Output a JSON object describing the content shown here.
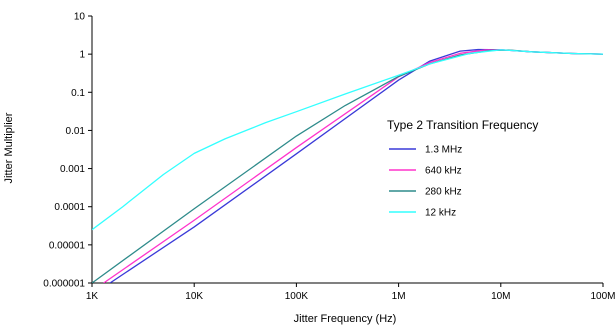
{
  "chart_data": {
    "type": "line",
    "title": "",
    "xlabel": "Jitter Frequency (Hz)",
    "ylabel": "Jitter Multiplier",
    "xscale": "log",
    "yscale": "log",
    "xlim": [
      1000,
      100000000
    ],
    "ylim": [
      1e-06,
      10
    ],
    "x_ticks": [
      {
        "value": 1000,
        "label": "1K"
      },
      {
        "value": 10000,
        "label": "10K"
      },
      {
        "value": 100000,
        "label": "100K"
      },
      {
        "value": 1000000,
        "label": "1M"
      },
      {
        "value": 10000000,
        "label": "10M"
      },
      {
        "value": 100000000,
        "label": "100M"
      }
    ],
    "y_ticks": [
      {
        "value": 10,
        "label": "10"
      },
      {
        "value": 1,
        "label": "1"
      },
      {
        "value": 0.1,
        "label": "0.1"
      },
      {
        "value": 0.01,
        "label": "0.01"
      },
      {
        "value": 0.001,
        "label": "0.001"
      },
      {
        "value": 0.0001,
        "label": "0.0001"
      },
      {
        "value": 1e-05,
        "label": "0.00001"
      },
      {
        "value": 1e-06,
        "label": "0.000001"
      }
    ],
    "grid": false,
    "legend": {
      "title": "Type 2 Transition Frequency",
      "position": "right-center"
    },
    "series": [
      {
        "name": "1.3 MHz",
        "color": "#3a3ad8",
        "points": [
          [
            1500,
            1e-06
          ],
          [
            10000,
            2.95e-05
          ],
          [
            100000,
            0.00244
          ],
          [
            1000000,
            0.209
          ],
          [
            2000000,
            0.65
          ],
          [
            4000000,
            1.2
          ],
          [
            6000000,
            1.32
          ],
          [
            10000000,
            1.3
          ],
          [
            20000000,
            1.15
          ],
          [
            50000000,
            1.04
          ],
          [
            100000000,
            1.0
          ]
        ]
      },
      {
        "name": "640 kHz",
        "color": "#ff33cc",
        "points": [
          [
            1300,
            1e-06
          ],
          [
            10000,
            4.42e-05
          ],
          [
            100000,
            0.00356
          ],
          [
            1000000,
            0.255
          ],
          [
            2000000,
            0.6
          ],
          [
            4000000,
            1.05
          ],
          [
            7000000,
            1.28
          ],
          [
            10000000,
            1.3
          ],
          [
            20000000,
            1.15
          ],
          [
            50000000,
            1.04
          ],
          [
            100000000,
            1.0
          ]
        ]
      },
      {
        "name": "280 kHz",
        "color": "#2e8b8b",
        "points": [
          [
            1000,
            1e-06
          ],
          [
            10000,
            8.83e-05
          ],
          [
            100000,
            0.00713
          ],
          [
            300000,
            0.045
          ],
          [
            1000000,
            0.26
          ],
          [
            2000000,
            0.55
          ],
          [
            4000000,
            0.95
          ],
          [
            8000000,
            1.25
          ],
          [
            12000000,
            1.28
          ],
          [
            20000000,
            1.15
          ],
          [
            50000000,
            1.04
          ],
          [
            100000000,
            1.0
          ]
        ]
      },
      {
        "name": "12 kHz",
        "color": "#33ffff",
        "points": [
          [
            1000,
            2.5e-05
          ],
          [
            2000,
            0.0001
          ],
          [
            5000,
            0.0007
          ],
          [
            10000,
            0.0025
          ],
          [
            20000,
            0.006
          ],
          [
            50000,
            0.016
          ],
          [
            100000,
            0.031
          ],
          [
            300000,
            0.09
          ],
          [
            1000000,
            0.28
          ],
          [
            2000000,
            0.55
          ],
          [
            5000000,
            1.05
          ],
          [
            10000000,
            1.3
          ],
          [
            20000000,
            1.15
          ],
          [
            50000000,
            1.04
          ],
          [
            100000000,
            1.0
          ]
        ]
      }
    ]
  }
}
